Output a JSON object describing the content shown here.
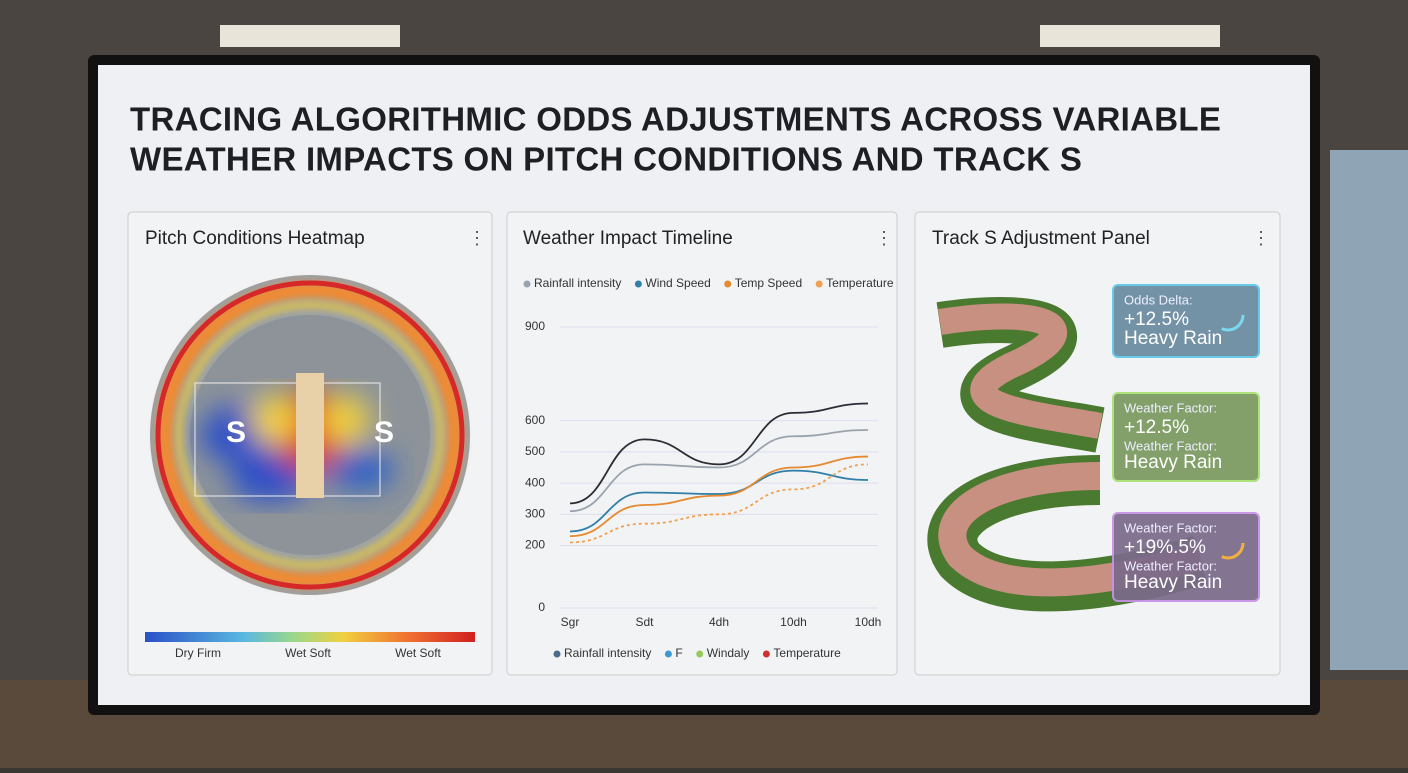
{
  "header": {
    "title_line1": "TRACING ALGORITHMIC ODDS ADJUSTMENTS ACROSS VARIABLE",
    "title_line2": "WEATHER IMPACTS ON PITCH CONDITIONS AND TRACK S"
  },
  "heatmap": {
    "title": "Pitch Conditions Heatmap",
    "zones": [
      "S",
      "S"
    ],
    "legend": [
      "Dry Firm",
      "Wet Soft",
      "Wet Soft"
    ]
  },
  "chart_data": {
    "type": "line",
    "title": "Weather Impact Timeline",
    "categories": [
      "Sgr",
      "Sdt",
      "4dh",
      "10dh",
      "10dh"
    ],
    "ylim": [
      0,
      900
    ],
    "yticks": [
      0,
      200,
      300,
      400,
      500,
      600,
      900
    ],
    "series": [
      {
        "color": "#2a2d33",
        "values": [
          335,
          540,
          460,
          625,
          655
        ]
      },
      {
        "name": "Rainfall intensity",
        "color": "#9aa3ad",
        "values": [
          310,
          460,
          450,
          550,
          570
        ]
      },
      {
        "name": "Wind Speed",
        "color": "#2f7fa8",
        "values": [
          245,
          370,
          365,
          440,
          410
        ]
      },
      {
        "name": "Temp Speed",
        "color": "#e58a2e",
        "values": [
          230,
          330,
          360,
          450,
          485
        ]
      },
      {
        "name": "Temperature",
        "color": "#f0a050",
        "values": [
          210,
          270,
          300,
          380,
          460
        ]
      }
    ],
    "bottom_legend": [
      {
        "name": "Rainfall intensity",
        "color": "#4a6a8a"
      },
      {
        "name": "F",
        "color": "#3a9ad0"
      },
      {
        "name": "Windaly",
        "color": "#9ac860"
      },
      {
        "name": "Temperature",
        "color": "#d03030"
      }
    ]
  },
  "track": {
    "title": "Track S Adjustment Panel",
    "cards": [
      {
        "label": "Odds Delta:",
        "value": "+12.5%",
        "sub": "Heavy Rain"
      },
      {
        "label": "Weather Factor:",
        "value": "+12.5%",
        "label2": "Weather Factor:",
        "sub": "Heavy Rain"
      },
      {
        "label": "Weather Factor:",
        "value": "+19%.5%",
        "label2": "Weather Factor:",
        "sub": "Heavy Rain"
      }
    ]
  }
}
